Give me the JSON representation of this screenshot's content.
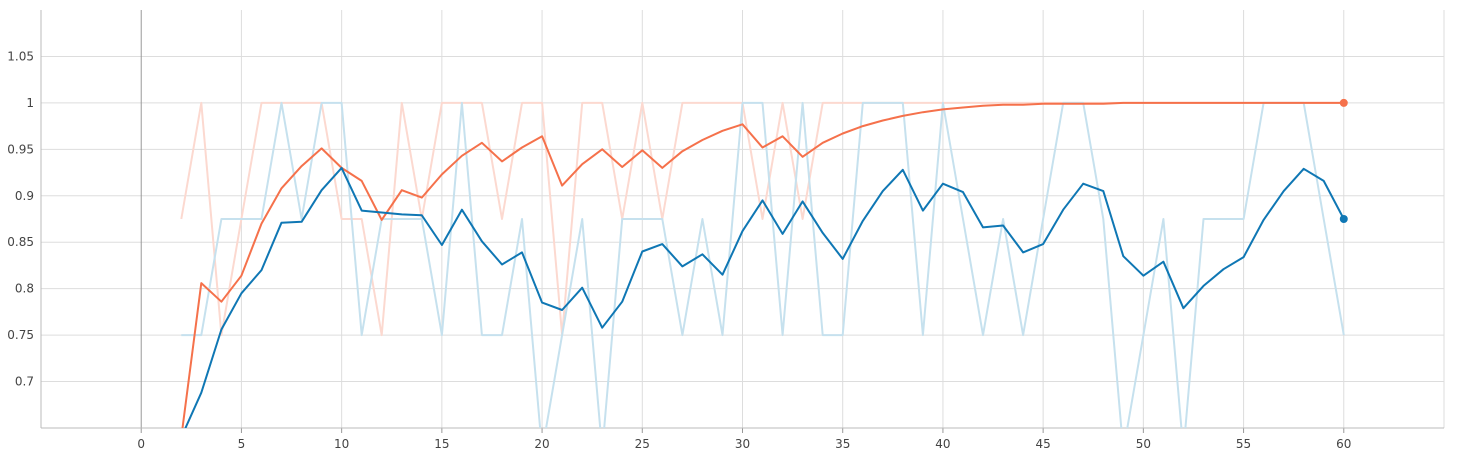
{
  "chart_data": {
    "type": "line",
    "title": "",
    "xlabel": "",
    "ylabel": "",
    "xlim": [
      -5,
      65
    ],
    "ylim": [
      0.65,
      1.1
    ],
    "x_ticks": [
      "0",
      "5",
      "10",
      "15",
      "20",
      "25",
      "30",
      "35",
      "40",
      "45",
      "50",
      "55",
      "60"
    ],
    "y_ticks": [
      "0.7",
      "0.75",
      "0.8",
      "0.85",
      "0.9",
      "0.95",
      "1",
      "1.05"
    ],
    "x_tick_values": [
      0,
      5,
      10,
      15,
      20,
      25,
      30,
      35,
      40,
      45,
      50,
      55,
      60
    ],
    "y_tick_values": [
      0.7,
      0.75,
      0.8,
      0.85,
      0.9,
      0.95,
      1.0,
      1.05
    ],
    "grid": true,
    "legend": "none",
    "series": [
      {
        "color": "#f5714b",
        "raw_color": "#fcd9d0",
        "x": [
          2,
          3,
          4,
          5,
          6,
          7,
          8,
          9,
          10,
          11,
          12,
          13,
          14,
          15,
          16,
          17,
          18,
          19,
          20,
          21,
          22,
          23,
          24,
          25,
          26,
          27,
          28,
          29,
          30,
          31,
          32,
          33,
          34,
          35,
          36,
          37,
          38,
          39,
          40,
          41,
          42,
          43,
          44,
          45,
          46,
          47,
          48,
          49,
          50,
          51,
          52,
          53,
          54,
          55,
          56,
          57,
          58,
          59,
          60
        ],
        "raw": [
          0.875,
          1.0,
          0.75,
          0.875,
          1.0,
          1.0,
          1.0,
          1.0,
          0.875,
          0.875,
          0.75,
          1.0,
          0.875,
          1.0,
          1.0,
          1.0,
          0.875,
          1.0,
          1.0,
          0.75,
          1.0,
          1.0,
          0.875,
          1.0,
          0.875,
          1.0,
          1.0,
          1.0,
          1.0,
          0.875,
          1.0,
          0.875,
          1.0,
          1.0,
          1.0,
          1.0,
          1.0,
          1.0,
          1.0,
          1.0,
          1.0,
          1.0,
          1.0,
          1.0,
          1.0,
          1.0,
          1.0,
          1.0,
          1.0,
          1.0,
          1.0,
          1.0,
          1.0,
          1.0,
          1.0,
          1.0,
          1.0,
          1.0,
          1.0
        ],
        "smoothed": [
          0.64,
          0.806,
          0.786,
          0.814,
          0.87,
          0.908,
          0.932,
          0.951,
          0.93,
          0.916,
          0.874,
          0.906,
          0.898,
          0.923,
          0.943,
          0.957,
          0.937,
          0.952,
          0.964,
          0.911,
          0.934,
          0.95,
          0.931,
          0.949,
          0.93,
          0.948,
          0.96,
          0.97,
          0.977,
          0.952,
          0.964,
          0.942,
          0.957,
          0.967,
          0.975,
          0.981,
          0.986,
          0.99,
          0.993,
          0.995,
          0.997,
          0.998,
          0.998,
          0.999,
          0.999,
          0.999,
          0.999,
          1.0,
          1.0,
          1.0,
          1.0,
          1.0,
          1.0,
          1.0,
          1.0,
          1.0,
          1.0,
          1.0,
          1.0
        ]
      },
      {
        "color": "#0f77b4",
        "raw_color": "#c6e1ee",
        "x": [
          2,
          3,
          4,
          5,
          6,
          7,
          8,
          9,
          10,
          11,
          12,
          13,
          14,
          15,
          16,
          17,
          18,
          19,
          20,
          21,
          22,
          23,
          24,
          25,
          26,
          27,
          28,
          29,
          30,
          31,
          32,
          33,
          34,
          35,
          36,
          37,
          38,
          39,
          40,
          41,
          42,
          43,
          44,
          45,
          46,
          47,
          48,
          49,
          50,
          51,
          52,
          53,
          54,
          55,
          56,
          57,
          58,
          59,
          60
        ],
        "raw": [
          0.75,
          0.75,
          0.875,
          0.875,
          0.875,
          1.0,
          0.875,
          1.0,
          1.0,
          0.75,
          0.875,
          0.875,
          0.875,
          0.75,
          1.0,
          0.75,
          0.75,
          0.875,
          0.625,
          0.75,
          0.875,
          0.625,
          0.875,
          0.875,
          0.875,
          0.75,
          0.875,
          0.75,
          1.0,
          1.0,
          0.75,
          1.0,
          0.75,
          0.75,
          1.0,
          1.0,
          1.0,
          0.75,
          1.0,
          0.875,
          0.75,
          0.875,
          0.75,
          0.875,
          1.0,
          1.0,
          0.875,
          0.625,
          0.75,
          0.875,
          0.625,
          0.875,
          0.875,
          0.875,
          1.0,
          1.0,
          1.0,
          0.875,
          0.75
        ],
        "smoothed": [
          0.64,
          0.688,
          0.756,
          0.795,
          0.82,
          0.871,
          0.872,
          0.906,
          0.93,
          0.884,
          0.882,
          0.88,
          0.879,
          0.847,
          0.885,
          0.851,
          0.826,
          0.839,
          0.785,
          0.777,
          0.801,
          0.758,
          0.786,
          0.84,
          0.848,
          0.824,
          0.837,
          0.815,
          0.862,
          0.895,
          0.859,
          0.894,
          0.86,
          0.832,
          0.873,
          0.905,
          0.928,
          0.884,
          0.913,
          0.904,
          0.866,
          0.868,
          0.839,
          0.848,
          0.885,
          0.913,
          0.905,
          0.835,
          0.814,
          0.829,
          0.779,
          0.803,
          0.821,
          0.834,
          0.874,
          0.905,
          0.929,
          0.916,
          0.875
        ]
      }
    ]
  }
}
